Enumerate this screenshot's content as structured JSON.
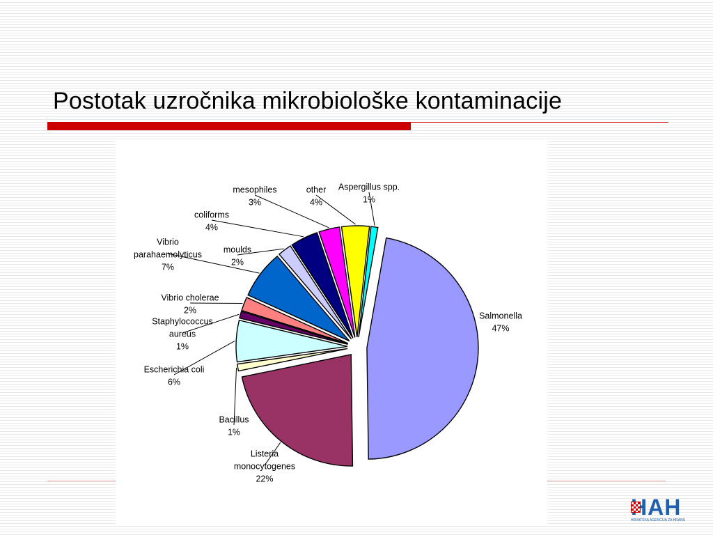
{
  "slide": {
    "title": "Postotak uzročnika mikrobiološke kontaminacije"
  },
  "logo": {
    "mark": "HAH",
    "subtitle": "HRVATSKA AGENCIJA ZA HRANU"
  },
  "chart_data": {
    "type": "pie",
    "title": "",
    "slices": [
      {
        "name": "Salmonella",
        "value": 47,
        "label_lines": [
          "Salmonella",
          "47%"
        ],
        "color": "#9999ff",
        "explode": 14
      },
      {
        "name": "Listeria monocytogenes",
        "value": 22,
        "label_lines": [
          "Listeria",
          "monocytogenes",
          "22%"
        ],
        "color": "#993366",
        "explode": 14
      },
      {
        "name": "Bacillus",
        "value": 1,
        "label_lines": [
          "Bacillus",
          "1%"
        ],
        "color": "#ffffcc",
        "explode": 14
      },
      {
        "name": "Escherichia coli",
        "value": 6,
        "label_lines": [
          "Escherichia coli",
          "6%"
        ],
        "color": "#ccffff",
        "explode": 14
      },
      {
        "name": "Staphylococcus aureus",
        "value": 1,
        "label_lines": [
          "Staphylococcus",
          "aureus",
          "1%"
        ],
        "color": "#660066",
        "explode": 14
      },
      {
        "name": "Vibrio cholerae",
        "value": 2,
        "label_lines": [
          "Vibrio cholerae",
          "2%"
        ],
        "color": "#ff8080",
        "explode": 14
      },
      {
        "name": "Vibrio parahaemolyticus",
        "value": 7,
        "label_lines": [
          "Vibrio",
          "parahaemolyticus",
          "7%"
        ],
        "color": "#0066cc",
        "explode": 14
      },
      {
        "name": "moulds",
        "value": 2,
        "label_lines": [
          "moulds",
          "2%"
        ],
        "color": "#ccccff",
        "explode": 14
      },
      {
        "name": "coliforms",
        "value": 4,
        "label_lines": [
          "coliforms",
          "4%"
        ],
        "color": "#000080",
        "explode": 14
      },
      {
        "name": "mesophiles",
        "value": 3,
        "label_lines": [
          "mesophiles",
          "3%"
        ],
        "color": "#ff00ff",
        "explode": 14
      },
      {
        "name": "other",
        "value": 4,
        "label_lines": [
          "other",
          "4%"
        ],
        "color": "#ffff00",
        "explode": 14
      },
      {
        "name": "Aspergillus spp.",
        "value": 1,
        "label_lines": [
          "Aspergillus spp.",
          "1%"
        ],
        "color": "#00ffff",
        "explode": 14
      }
    ],
    "legend": "none",
    "labels": "outside-with-leader-lines"
  }
}
